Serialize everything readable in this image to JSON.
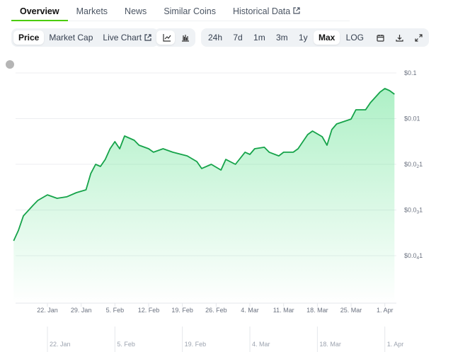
{
  "tabs": [
    {
      "label": "Overview",
      "active": true
    },
    {
      "label": "Markets"
    },
    {
      "label": "News"
    },
    {
      "label": "Similar Coins"
    },
    {
      "label": "Historical Data",
      "icon": "external-link-icon"
    }
  ],
  "toolbar": {
    "metric": [
      {
        "label": "Price",
        "selected": true
      },
      {
        "label": "Market Cap"
      },
      {
        "label": "Live Chart",
        "icon": "external-link-icon"
      }
    ],
    "chart_types": [
      {
        "icon": "line-chart-icon",
        "selected": true
      },
      {
        "icon": "candlestick-chart-icon"
      }
    ],
    "ranges": [
      {
        "label": "24h"
      },
      {
        "label": "7d"
      },
      {
        "label": "1m"
      },
      {
        "label": "3m"
      },
      {
        "label": "1y"
      },
      {
        "label": "Max",
        "selected": true
      },
      {
        "label": "LOG"
      }
    ],
    "actions": [
      {
        "icon": "calendar-icon"
      },
      {
        "icon": "download-icon"
      },
      {
        "icon": "fullscreen-icon"
      }
    ]
  },
  "colors": {
    "line": "#16a34a",
    "fill": "#4ade80",
    "accent": "#4bcc00"
  },
  "chart_data": {
    "type": "area",
    "yscale": "log",
    "ylim": [
      1e-05,
      0.1
    ],
    "yticks": [
      {
        "value": 0.1,
        "label": "$0.1"
      },
      {
        "value": 0.01,
        "label": "$0.01"
      },
      {
        "value": 0.001,
        "label": "$0.0",
        "sub": "2",
        "tail": "1"
      },
      {
        "value": 0.0001,
        "label": "$0.0",
        "sub": "3",
        "tail": "1"
      },
      {
        "value": 1e-05,
        "label": "$0.0",
        "sub": "4",
        "tail": "1"
      }
    ],
    "xticks": [
      "22. Jan",
      "29. Jan",
      "5. Feb",
      "12. Feb",
      "19. Feb",
      "26. Feb",
      "4. Mar",
      "11. Mar",
      "18. Mar",
      "25. Mar",
      "1. Apr"
    ],
    "navigator_ticks": [
      "22. Jan",
      "5. Feb",
      "19. Feb",
      "4. Mar",
      "18. Mar",
      "1. Apr"
    ],
    "points": [
      [
        "01-15",
        2.12e-05
      ],
      [
        "01-16",
        3.6e-05
      ],
      [
        "01-17",
        7.4e-05
      ],
      [
        "01-19",
        0.000126
      ],
      [
        "01-20",
        0.000162
      ],
      [
        "01-22",
        0.000215
      ],
      [
        "01-24",
        0.00018
      ],
      [
        "01-26",
        0.000194
      ],
      [
        "01-28",
        0.00024
      ],
      [
        "01-30",
        0.000277
      ],
      [
        "01-31",
        0.00063
      ],
      [
        "02-01",
        0.001
      ],
      [
        "02-02",
        0.0009
      ],
      [
        "02-03",
        0.00128
      ],
      [
        "02-04",
        0.00219
      ],
      [
        "02-05",
        0.00313
      ],
      [
        "02-06",
        0.00219
      ],
      [
        "02-07",
        0.00417
      ],
      [
        "02-09",
        0.00337
      ],
      [
        "02-10",
        0.00262
      ],
      [
        "02-12",
        0.00219
      ],
      [
        "02-13",
        0.00184
      ],
      [
        "02-15",
        0.00219
      ],
      [
        "02-17",
        0.00184
      ],
      [
        "02-20",
        0.00153
      ],
      [
        "02-22",
        0.00115
      ],
      [
        "02-23",
        0.00081
      ],
      [
        "02-25",
        0.001
      ],
      [
        "02-27",
        0.00075
      ],
      [
        "02-28",
        0.00128
      ],
      [
        "03-01",
        0.001
      ],
      [
        "03-03",
        0.00184
      ],
      [
        "03-04",
        0.00165
      ],
      [
        "03-05",
        0.00219
      ],
      [
        "03-07",
        0.00236
      ],
      [
        "03-08",
        0.00184
      ],
      [
        "03-10",
        0.00153
      ],
      [
        "03-11",
        0.00184
      ],
      [
        "03-13",
        0.00184
      ],
      [
        "03-14",
        0.00219
      ],
      [
        "03-16",
        0.00448
      ],
      [
        "03-17",
        0.00536
      ],
      [
        "03-19",
        0.00403
      ],
      [
        "03-20",
        0.00262
      ],
      [
        "03-21",
        0.00575
      ],
      [
        "03-22",
        0.00766
      ],
      [
        "03-25",
        0.0098
      ],
      [
        "03-26",
        0.0156
      ],
      [
        "03-28",
        0.0156
      ],
      [
        "03-29",
        0.0223
      ],
      [
        "03-31",
        0.0381
      ],
      [
        "04-01",
        0.0456
      ],
      [
        "04-02",
        0.041
      ],
      [
        "04-03",
        0.0343
      ]
    ]
  }
}
